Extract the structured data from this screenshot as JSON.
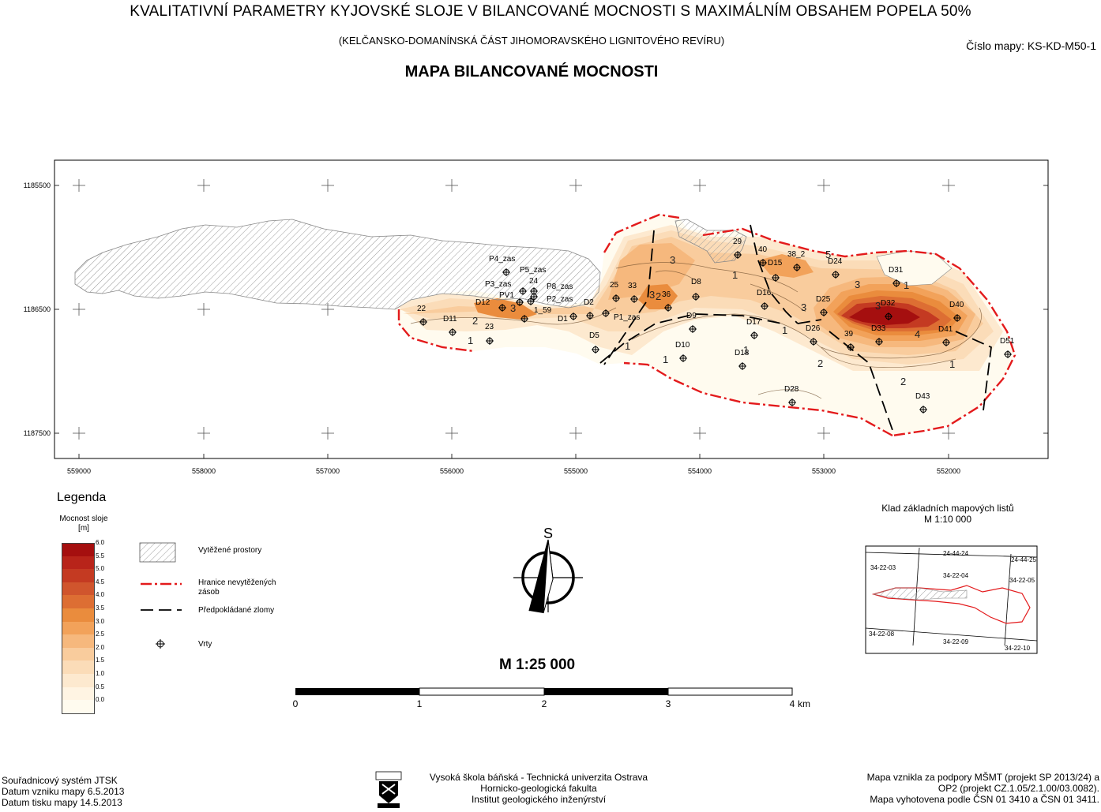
{
  "header": {
    "title": "KVALITATIVNÍ PARAMETRY KYJOVSKÉ SLOJE V BILANCOVANÉ MOCNOSTI S MAXIMÁLNÍM OBSAHEM POPELA 50%",
    "subtitle": "(KELČANSKO-DOMANÍNSKÁ ČÁST JIHOMORAVSKÉHO LIGNITOVÉHO REVÍRU)",
    "map_number": "Číslo mapy: KS-KD-M50-1",
    "map_title": "MAPA BILANCOVANÉ MOCNOSTI"
  },
  "map": {
    "y_ticks": [
      "1185500",
      "1186500",
      "1187500"
    ],
    "x_ticks": [
      "559000",
      "558000",
      "557000",
      "556000",
      "555000",
      "554000",
      "553000",
      "552000"
    ],
    "boreholes": [
      "P4_zas",
      "P5_zas",
      "24",
      "P3_zas",
      "P8_zas",
      "PV1",
      "P2_zas",
      "D12",
      "D2",
      "1_59",
      "D1",
      "P1_zas",
      "22",
      "D11",
      "23",
      "D5",
      "25",
      "33",
      "36",
      "D8",
      "D9",
      "D10",
      "29",
      "40",
      "D15",
      "38_2",
      "D24",
      "D16",
      "D17",
      "D18",
      "D25",
      "D26",
      "39",
      "D32",
      "D33",
      "D31",
      "D40",
      "D41",
      "D51",
      "D28",
      "D43"
    ],
    "contour_labels": [
      "2",
      "3",
      "1",
      "3",
      "2",
      "1",
      "3",
      "1",
      "1",
      "1",
      "5",
      "3",
      "3",
      "3",
      "4",
      "2",
      "2",
      "1",
      "1",
      "1"
    ]
  },
  "legend": {
    "title": "Legenda",
    "unit_label": "Mocnost sloje",
    "unit": "[m]",
    "ramp": [
      {
        "label": "6.0",
        "color": "#a50f0f"
      },
      {
        "label": "5.5",
        "color": "#b8241a"
      },
      {
        "label": "5.0",
        "color": "#c43a22"
      },
      {
        "label": "4.5",
        "color": "#d0552d"
      },
      {
        "label": "4.0",
        "color": "#dd6e33"
      },
      {
        "label": "3.5",
        "color": "#ea8c3d"
      },
      {
        "label": "3.0",
        "color": "#f2a25a"
      },
      {
        "label": "2.5",
        "color": "#f6b87d"
      },
      {
        "label": "2.0",
        "color": "#f9cc9d"
      },
      {
        "label": "1.5",
        "color": "#fbdcb8"
      },
      {
        "label": "1.0",
        "color": "#fde9cf"
      },
      {
        "label": "0.5",
        "color": "#fff4e3"
      },
      {
        "label": "0.0",
        "color": "#fffbef"
      }
    ],
    "items": [
      {
        "label": "Vytěžené prostory"
      },
      {
        "label": "Hranice nevytěžených zásob"
      },
      {
        "label": "Předpokládané zlomy"
      },
      {
        "label": "Vrty"
      }
    ]
  },
  "compass": {
    "label": "S"
  },
  "scale": {
    "title": "M 1:25 000",
    "ticks": [
      "0",
      "1",
      "2",
      "3",
      "4"
    ],
    "unit": "km"
  },
  "index_map": {
    "title_line1": "Klad základních mapových listů",
    "title_line2": "M 1:10 000",
    "sheets": [
      "24-44-24",
      "24-44-25",
      "34-22-03",
      "34-22-04",
      "34-22-05",
      "34-22-08",
      "34-22-09",
      "34-22-10"
    ]
  },
  "footer": {
    "left": [
      "Souřadnicový systém JTSK",
      "Datum vzniku mapy 6.5.2013",
      "Datum tisku mapy 14.5.2013"
    ],
    "center": [
      "Vysoká škola báňská - Technická univerzita Ostrava",
      "Hornicko-geologická fakulta",
      "Institut geologického inženýrství"
    ],
    "right": [
      "Mapa vznikla za podpory MŠMT (projekt SP 2013/24) a",
      "OP2 (projekt CZ.1.05/2.1.00/03.0082).",
      "Mapa vyhotovena podle ČSN 01 3410 a ČSN 01 3411."
    ]
  },
  "colors": {
    "boundary": "#e31a1c",
    "mined_hatch": "#9a9a9a"
  }
}
